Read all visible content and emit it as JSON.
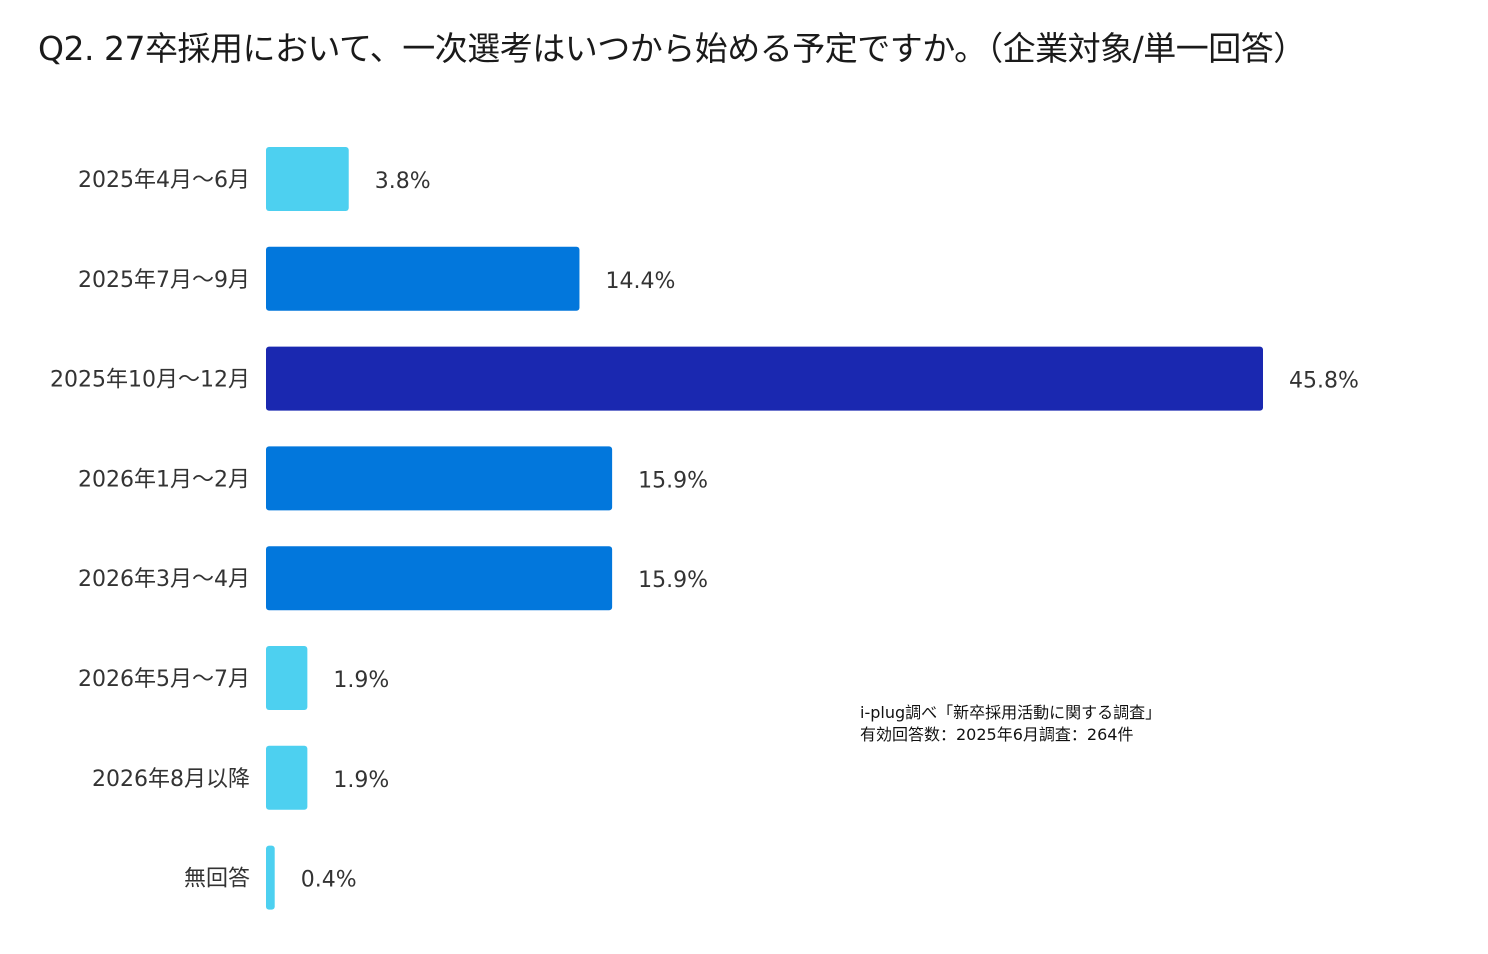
{
  "chart_data": {
    "type": "bar",
    "orientation": "horizontal",
    "title": "Q2. 27卒採用において、一次選考はいつから始める予定ですか。（企業対象/単一回答）",
    "categories": [
      "2025年4月～6月",
      "2025年7月～9月",
      "2025年10月～12月",
      "2026年1月～2月",
      "2026年3月～4月",
      "2026年5月～7月",
      "2026年8月以降",
      "無回答"
    ],
    "values": [
      3.8,
      14.4,
      45.8,
      15.9,
      15.9,
      1.9,
      1.9,
      0.4
    ],
    "labels": [
      "3.8%",
      "14.4%",
      "45.8%",
      "15.9%",
      "15.9%",
      "1.9%",
      "1.9%",
      "0.4%"
    ],
    "colors": [
      "#4dd0f0",
      "#0277dc",
      "#1a28b0",
      "#0277dc",
      "#0277dc",
      "#4dd0f0",
      "#4dd0f0",
      "#4dd0f0"
    ],
    "unit": "%",
    "xlabel": "",
    "ylabel": "",
    "xlim": [
      0,
      45.8
    ],
    "grid": false
  },
  "source_note": {
    "line1": "i-plug調べ「新卒採用活動に関する調査」",
    "line2": "有効回答数：2025年6月調査：264件"
  }
}
